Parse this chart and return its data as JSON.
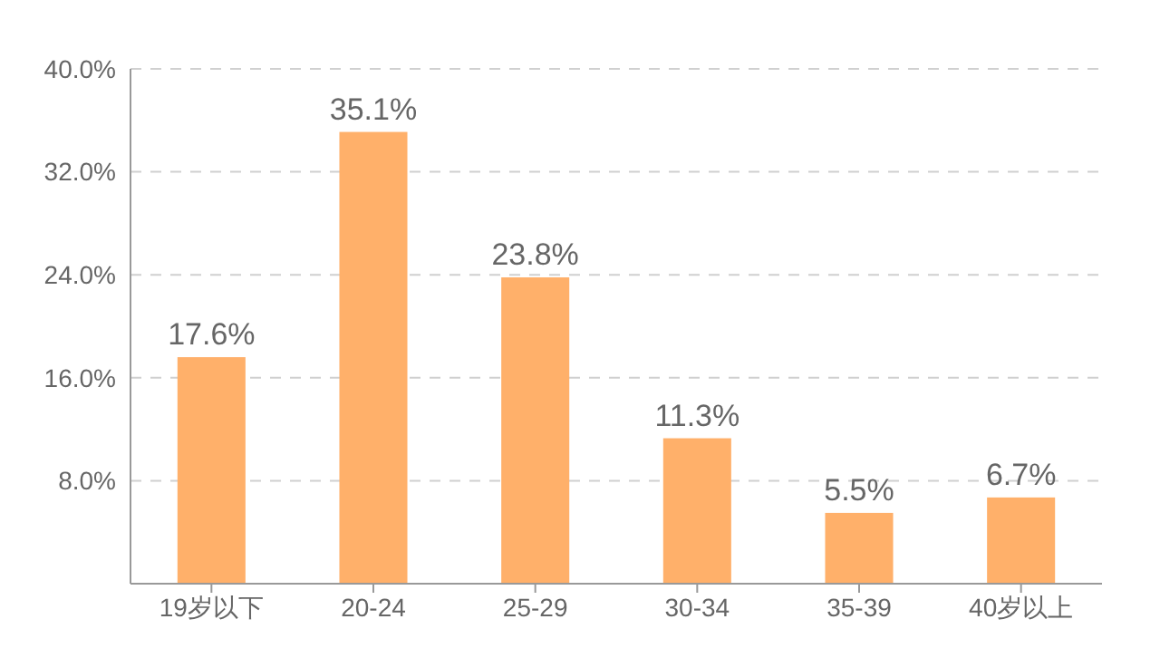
{
  "chart_data": {
    "type": "bar",
    "categories": [
      "19岁以下",
      "20-24",
      "25-29",
      "30-34",
      "35-39",
      "40岁以上"
    ],
    "values": [
      17.6,
      35.1,
      23.8,
      11.3,
      5.5,
      6.7
    ],
    "value_labels": [
      "17.6%",
      "35.1%",
      "23.8%",
      "11.3%",
      "5.5%",
      "6.7%"
    ],
    "color": "#ffb06a",
    "ylim": [
      0,
      40
    ],
    "yticks": [
      {
        "value": 8,
        "label": "8.0%"
      },
      {
        "value": 16,
        "label": "16.0%"
      },
      {
        "value": 24,
        "label": "24.0%"
      },
      {
        "value": 32,
        "label": "32.0%"
      },
      {
        "value": 40,
        "label": "40.0%"
      }
    ],
    "grid": "y"
  }
}
